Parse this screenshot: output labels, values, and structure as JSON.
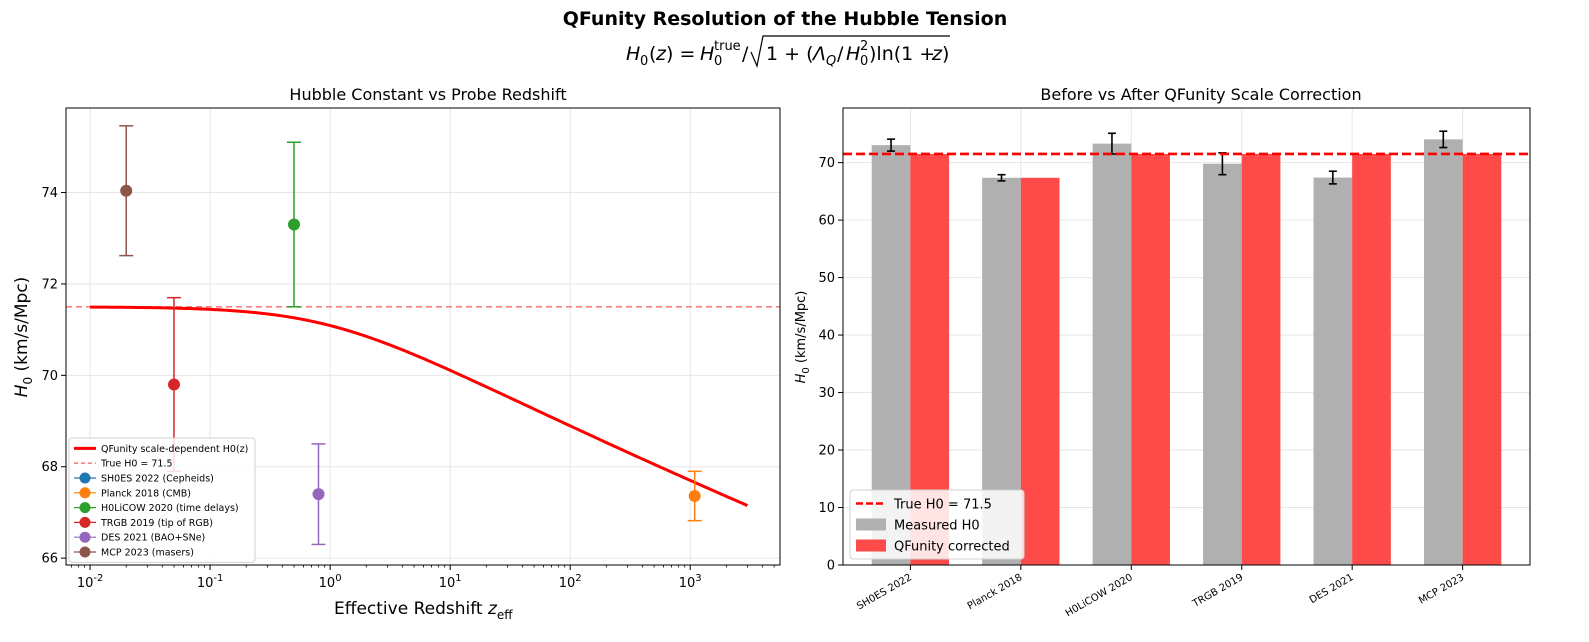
{
  "figure": {
    "suptitle": "QFunity Resolution of the Hubble Tension"
  },
  "chart_data": [
    {
      "type": "scatter",
      "title": "Hubble Constant vs Probe Redshift",
      "xlabel": "Effective Redshift z_eff",
      "ylabel": "H_0 (km/s/Mpc)",
      "x_scale": "log",
      "xlim": [
        0.0063,
        5600
      ],
      "ylim": [
        65.85,
        75.85
      ],
      "x_ticks": [
        0.01,
        0.1,
        1,
        10,
        100,
        1000
      ],
      "x_tick_labels": [
        "10^-2",
        "10^-1",
        "10^0",
        "10^1",
        "10^2",
        "10^3"
      ],
      "y_ticks": [
        66,
        68,
        70,
        72,
        74
      ],
      "y_tick_labels": [
        "66",
        "68",
        "70",
        "72",
        "74"
      ],
      "grid": true,
      "legend_position": "lower-left",
      "reference_line": {
        "name": "True H0 = 71.5",
        "y": 71.5,
        "color": "#ff7f7f",
        "style": "dashed"
      },
      "curve": {
        "name": "QFunity scale-dependent H0(z)",
        "color": "#ff0000",
        "H0_true": 71.5,
        "ratio_lambdaQ_H0sq": 0.0167,
        "z_range": [
          0.01,
          3000
        ]
      },
      "series": [
        {
          "name": "SH0ES 2022 (Cepheids)",
          "color": "#1f77b4",
          "points": []
        },
        {
          "name": "Planck 2018 (CMB)",
          "color": "#ff7f0e",
          "points": [
            {
              "x": 1090,
              "y": 67.36,
              "err": 0.54
            }
          ]
        },
        {
          "name": "H0LiCOW 2020 (time delays)",
          "color": "#2ca02c",
          "points": [
            {
              "x": 0.5,
              "y": 73.3,
              "err": 1.8
            }
          ]
        },
        {
          "name": "TRGB 2019 (tip of RGB)",
          "color": "#d62728",
          "points": [
            {
              "x": 0.05,
              "y": 69.8,
              "err": 1.9
            }
          ]
        },
        {
          "name": "DES 2021 (BAO+SNe)",
          "color": "#9467bd",
          "points": [
            {
              "x": 0.8,
              "y": 67.4,
              "err": 1.1
            }
          ]
        },
        {
          "name": "MCP 2023 (masers)",
          "color": "#8c564b",
          "points": [
            {
              "x": 0.02,
              "y": 74.04,
              "err": 1.42
            }
          ]
        }
      ]
    },
    {
      "type": "bar",
      "title": "Before vs After QFunity Scale Correction",
      "xlabel": "",
      "ylabel": "H_0 (km/s/Mpc)",
      "ylim": [
        0,
        79.5
      ],
      "y_ticks": [
        0,
        10,
        20,
        30,
        40,
        50,
        60,
        70
      ],
      "y_tick_labels": [
        "0",
        "10",
        "20",
        "30",
        "40",
        "50",
        "60",
        "70"
      ],
      "grid": true,
      "legend_position": "lower-left",
      "categories": [
        "SH0ES 2022",
        "Planck 2018",
        "H0LiCOW 2020",
        "TRGB 2019",
        "DES 2021",
        "MCP 2023"
      ],
      "reference_line": {
        "name": "True H0 = 71.5",
        "y": 71.5,
        "color": "#ff0000",
        "style": "dashed"
      },
      "series": [
        {
          "name": "Measured H0",
          "color": "#b0b0b0",
          "values": [
            73.04,
            67.36,
            73.3,
            69.8,
            67.4,
            74.04
          ],
          "errors": [
            1.04,
            0.54,
            1.8,
            1.9,
            1.1,
            1.42
          ]
        },
        {
          "name": "QFunity corrected",
          "color": "#ff4a4a",
          "values": [
            71.5,
            67.36,
            71.5,
            71.5,
            71.5,
            71.5
          ]
        }
      ]
    }
  ]
}
